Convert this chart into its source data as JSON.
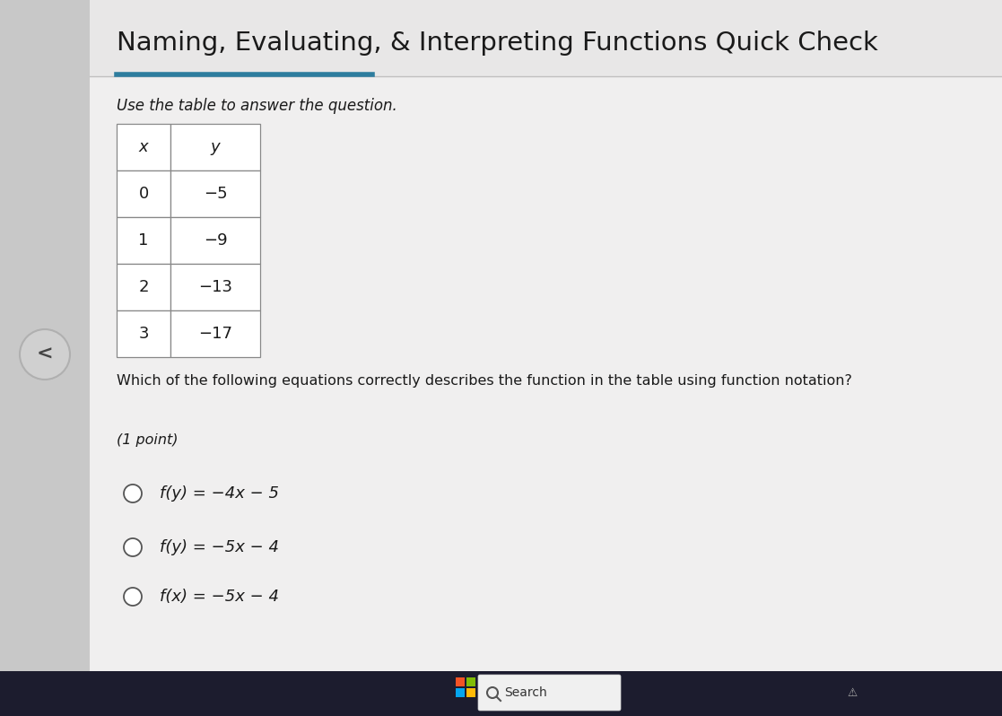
{
  "title": "Naming, Evaluating, & Interpreting Functions Quick Check",
  "subtitle": "Use the table to answer the question.",
  "table_headers": [
    "x",
    "y"
  ],
  "table_data": [
    [
      "0",
      "−5"
    ],
    [
      "1",
      "−9"
    ],
    [
      "2",
      "−13"
    ],
    [
      "3",
      "−17"
    ]
  ],
  "question": "Which of the following equations correctly describes the function in the table using function notation?",
  "points_label": "(1 point)",
  "choice1": "f(y) = −4x − 5",
  "choice2": "f(y) = −5x − 4",
  "choice3": "f(x) = −5x − 4",
  "bg_main": "#e0e0e0",
  "bg_left_sidebar": "#c8c8c8",
  "bg_content": "#f0efef",
  "bg_title_area": "#e8e7e7",
  "title_underline_color": "#2e7d9e",
  "sep_line_color": "#c0bfbf",
  "table_border_color": "#888888",
  "table_bg": "#ffffff",
  "text_color": "#1a1a1a",
  "nav_circle_bg": "#d0d0d0",
  "nav_circle_edge": "#b0b0b0",
  "taskbar_bg": "#1c1c2e",
  "taskbar_search_bg": "#f0f0f0",
  "win_colors": [
    "#f35325",
    "#81bc06",
    "#05a6f0",
    "#ffba08"
  ],
  "radio_color": "#555555",
  "fig_width": 11.17,
  "fig_height": 7.98
}
